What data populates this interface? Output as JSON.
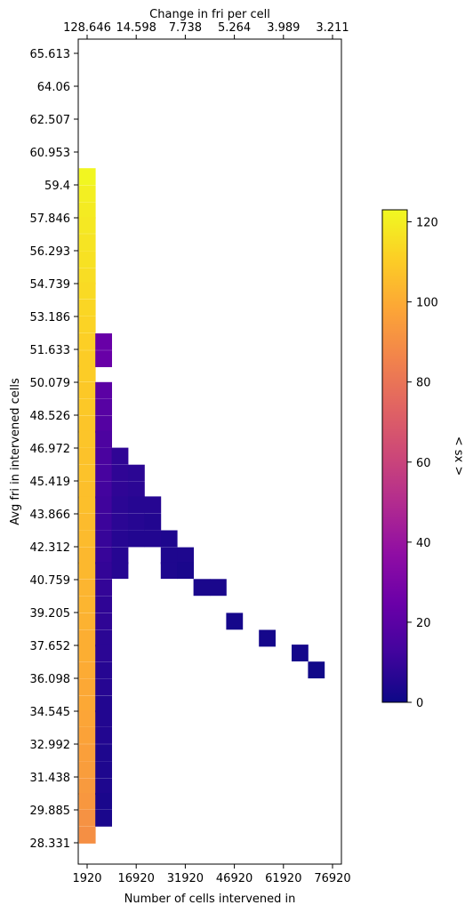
{
  "chart_data": {
    "type": "heatmap",
    "title": "",
    "xlabel": "Number of cells intervened in",
    "ylabel": "Avg fri in intervened cells",
    "x2label": "Change in fri per cell",
    "colorbar_label": "< sx >",
    "colormap": "plasma",
    "x_ticks": [
      "1920",
      "16920",
      "31920",
      "46920",
      "61920",
      "76920"
    ],
    "x_top_ticks": [
      "128.646",
      "14.598",
      "7.738",
      "5.264",
      "3.989",
      "3.211"
    ],
    "y_ticks": [
      "65.613",
      "64.06",
      "62.507",
      "60.953",
      "59.4",
      "57.846",
      "56.293",
      "54.739",
      "53.186",
      "51.633",
      "50.079",
      "48.526",
      "46.972",
      "45.419",
      "43.866",
      "42.312",
      "40.759",
      "39.205",
      "37.652",
      "36.098",
      "34.545",
      "32.992",
      "31.438",
      "29.885",
      "28.331"
    ],
    "colorbar_ticks": [
      "0",
      "20",
      "40",
      "60",
      "80",
      "100",
      "120"
    ],
    "colorbar_range": [
      0,
      123
    ],
    "grid": false,
    "x_range": [
      1920,
      76920
    ],
    "y_range": [
      28.331,
      65.613
    ],
    "x_cell_width": 5000,
    "y_cell_height": 0.776,
    "cells": [
      {
        "x": 1920,
        "y": 59.8,
        "v": 122
      },
      {
        "x": 1920,
        "y": 59.0,
        "v": 120
      },
      {
        "x": 1920,
        "y": 58.2,
        "v": 119
      },
      {
        "x": 1920,
        "y": 57.5,
        "v": 118
      },
      {
        "x": 1920,
        "y": 56.7,
        "v": 117
      },
      {
        "x": 1920,
        "y": 55.9,
        "v": 116
      },
      {
        "x": 1920,
        "y": 55.1,
        "v": 115
      },
      {
        "x": 1920,
        "y": 54.4,
        "v": 114
      },
      {
        "x": 1920,
        "y": 53.6,
        "v": 113
      },
      {
        "x": 1920,
        "y": 52.8,
        "v": 112
      },
      {
        "x": 1920,
        "y": 52.0,
        "v": 111
      },
      {
        "x": 1920,
        "y": 51.2,
        "v": 110
      },
      {
        "x": 1920,
        "y": 50.5,
        "v": 110
      },
      {
        "x": 1920,
        "y": 49.7,
        "v": 109
      },
      {
        "x": 1920,
        "y": 48.9,
        "v": 109
      },
      {
        "x": 1920,
        "y": 48.1,
        "v": 108
      },
      {
        "x": 1920,
        "y": 47.4,
        "v": 108
      },
      {
        "x": 1920,
        "y": 46.6,
        "v": 107
      },
      {
        "x": 1920,
        "y": 45.8,
        "v": 107
      },
      {
        "x": 1920,
        "y": 45.0,
        "v": 106
      },
      {
        "x": 1920,
        "y": 44.3,
        "v": 106
      },
      {
        "x": 1920,
        "y": 43.5,
        "v": 105
      },
      {
        "x": 1920,
        "y": 42.7,
        "v": 105
      },
      {
        "x": 1920,
        "y": 41.9,
        "v": 104
      },
      {
        "x": 1920,
        "y": 41.2,
        "v": 104
      },
      {
        "x": 1920,
        "y": 40.4,
        "v": 103
      },
      {
        "x": 1920,
        "y": 39.6,
        "v": 103
      },
      {
        "x": 1920,
        "y": 38.8,
        "v": 102
      },
      {
        "x": 1920,
        "y": 38.0,
        "v": 101
      },
      {
        "x": 1920,
        "y": 37.3,
        "v": 101
      },
      {
        "x": 1920,
        "y": 36.5,
        "v": 100
      },
      {
        "x": 1920,
        "y": 35.7,
        "v": 99
      },
      {
        "x": 1920,
        "y": 34.9,
        "v": 99
      },
      {
        "x": 1920,
        "y": 34.2,
        "v": 98
      },
      {
        "x": 1920,
        "y": 33.4,
        "v": 97
      },
      {
        "x": 1920,
        "y": 32.6,
        "v": 96
      },
      {
        "x": 1920,
        "y": 31.8,
        "v": 95
      },
      {
        "x": 1920,
        "y": 31.0,
        "v": 94
      },
      {
        "x": 1920,
        "y": 30.3,
        "v": 93
      },
      {
        "x": 1920,
        "y": 29.5,
        "v": 91
      },
      {
        "x": 1920,
        "y": 28.7,
        "v": 90
      },
      {
        "x": 6920,
        "y": 52.0,
        "v": 24
      },
      {
        "x": 6920,
        "y": 51.2,
        "v": 24
      },
      {
        "x": 6920,
        "y": 49.7,
        "v": 20
      },
      {
        "x": 6920,
        "y": 48.9,
        "v": 19
      },
      {
        "x": 6920,
        "y": 48.1,
        "v": 18
      },
      {
        "x": 6920,
        "y": 47.4,
        "v": 16
      },
      {
        "x": 6920,
        "y": 46.6,
        "v": 15
      },
      {
        "x": 6920,
        "y": 45.8,
        "v": 14
      },
      {
        "x": 6920,
        "y": 45.0,
        "v": 13
      },
      {
        "x": 6920,
        "y": 44.3,
        "v": 12
      },
      {
        "x": 6920,
        "y": 43.5,
        "v": 11
      },
      {
        "x": 6920,
        "y": 42.7,
        "v": 10
      },
      {
        "x": 6920,
        "y": 41.9,
        "v": 10
      },
      {
        "x": 6920,
        "y": 41.2,
        "v": 9
      },
      {
        "x": 6920,
        "y": 40.4,
        "v": 9
      },
      {
        "x": 6920,
        "y": 39.6,
        "v": 8
      },
      {
        "x": 6920,
        "y": 38.8,
        "v": 8
      },
      {
        "x": 6920,
        "y": 38.0,
        "v": 7
      },
      {
        "x": 6920,
        "y": 37.3,
        "v": 7
      },
      {
        "x": 6920,
        "y": 36.5,
        "v": 6
      },
      {
        "x": 6920,
        "y": 35.7,
        "v": 6
      },
      {
        "x": 6920,
        "y": 34.9,
        "v": 5
      },
      {
        "x": 6920,
        "y": 34.2,
        "v": 5
      },
      {
        "x": 6920,
        "y": 33.4,
        "v": 5
      },
      {
        "x": 6920,
        "y": 32.6,
        "v": 4
      },
      {
        "x": 6920,
        "y": 31.8,
        "v": 4
      },
      {
        "x": 6920,
        "y": 31.0,
        "v": 4
      },
      {
        "x": 6920,
        "y": 30.3,
        "v": 3
      },
      {
        "x": 6920,
        "y": 29.5,
        "v": 3
      },
      {
        "x": 11920,
        "y": 46.6,
        "v": 8
      },
      {
        "x": 11920,
        "y": 45.8,
        "v": 8
      },
      {
        "x": 11920,
        "y": 45.0,
        "v": 8
      },
      {
        "x": 11920,
        "y": 44.3,
        "v": 7
      },
      {
        "x": 11920,
        "y": 43.5,
        "v": 7
      },
      {
        "x": 11920,
        "y": 42.7,
        "v": 6
      },
      {
        "x": 11920,
        "y": 41.9,
        "v": 6
      },
      {
        "x": 11920,
        "y": 41.2,
        "v": 6
      },
      {
        "x": 16920,
        "y": 45.8,
        "v": 7
      },
      {
        "x": 16920,
        "y": 45.0,
        "v": 7
      },
      {
        "x": 16920,
        "y": 44.3,
        "v": 6
      },
      {
        "x": 16920,
        "y": 43.5,
        "v": 6
      },
      {
        "x": 16920,
        "y": 42.7,
        "v": 5
      },
      {
        "x": 21920,
        "y": 44.3,
        "v": 6
      },
      {
        "x": 21920,
        "y": 43.5,
        "v": 5
      },
      {
        "x": 21920,
        "y": 42.7,
        "v": 5
      },
      {
        "x": 26920,
        "y": 42.7,
        "v": 4
      },
      {
        "x": 26920,
        "y": 41.9,
        "v": 4
      },
      {
        "x": 26920,
        "y": 41.2,
        "v": 4
      },
      {
        "x": 31920,
        "y": 41.9,
        "v": 4
      },
      {
        "x": 31920,
        "y": 41.2,
        "v": 3
      },
      {
        "x": 36920,
        "y": 40.4,
        "v": 3
      },
      {
        "x": 41920,
        "y": 40.4,
        "v": 3
      },
      {
        "x": 46920,
        "y": 38.8,
        "v": 2
      },
      {
        "x": 56920,
        "y": 38.0,
        "v": 2
      },
      {
        "x": 66920,
        "y": 37.3,
        "v": 2
      },
      {
        "x": 71920,
        "y": 36.5,
        "v": 1
      }
    ]
  }
}
